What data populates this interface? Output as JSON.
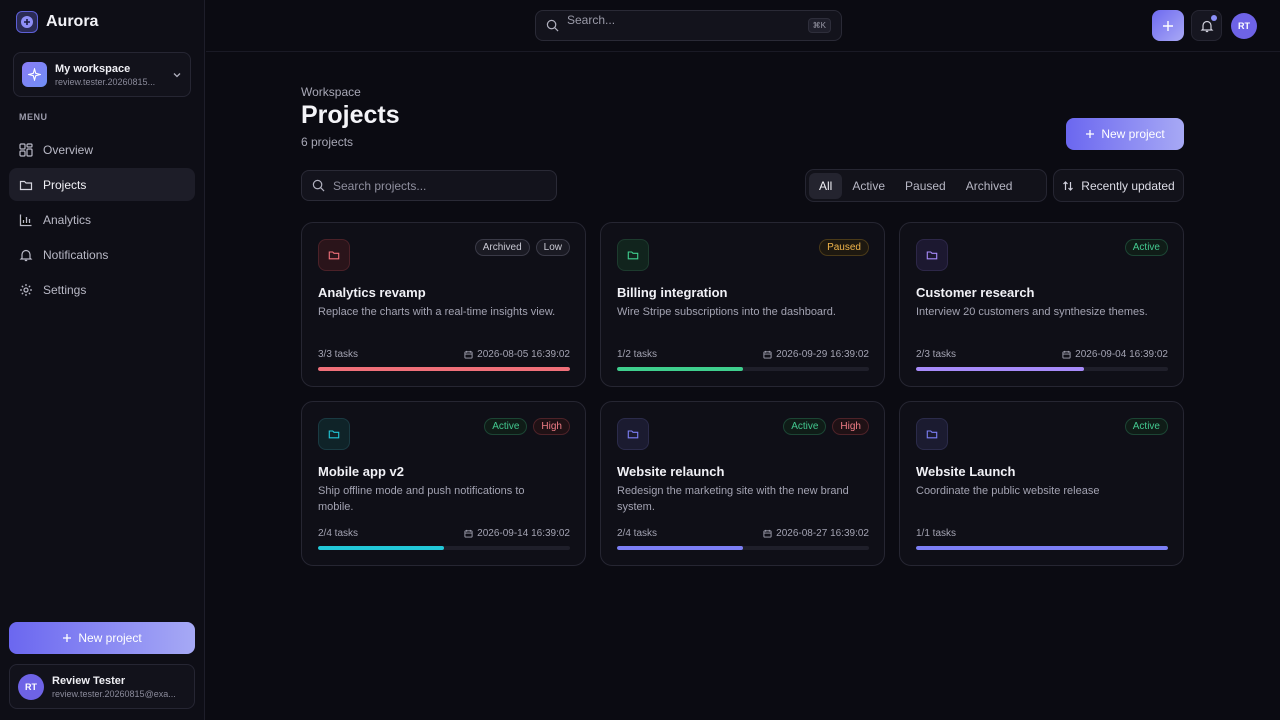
{
  "brand": {
    "name": "Aurora"
  },
  "workspace": {
    "name": "My workspace",
    "sub": "review.tester.20260815..."
  },
  "menu_label": "MENU",
  "nav": [
    {
      "label": "Overview",
      "icon": "grid-icon"
    },
    {
      "label": "Projects",
      "icon": "folder-icon",
      "active": true
    },
    {
      "label": "Analytics",
      "icon": "bar-chart-icon"
    },
    {
      "label": "Notifications",
      "icon": "bell-icon"
    },
    {
      "label": "Settings",
      "icon": "gear-icon"
    }
  ],
  "sidebar_new_project": "New project",
  "user": {
    "initials": "RT",
    "name": "Review Tester",
    "email": "review.tester.20260815@exa..."
  },
  "topbar": {
    "search_placeholder": "Search...",
    "shortcut": "⌘K",
    "avatar_initials": "RT"
  },
  "page": {
    "breadcrumb": "Workspace",
    "title": "Projects",
    "count": "6 projects",
    "new_project": "New project"
  },
  "search": {
    "placeholder": "Search projects..."
  },
  "filters": [
    "All",
    "Active",
    "Paused",
    "Archived"
  ],
  "sort": {
    "label": "Recently updated"
  },
  "colors": {
    "accent": "#6b67f0",
    "red": "#f0707a",
    "green": "#3fcf8e",
    "purple": "#a78bfa",
    "cyan": "#22c8d8",
    "indigo": "#7c7ff5"
  },
  "projects": [
    {
      "title": "Analytics revamp",
      "desc": "Replace the charts with a real-time insights view.",
      "tasks": "3/3 tasks",
      "date": "2026-08-05 16:39:02",
      "progress": 1.0,
      "color": "#f0707a",
      "icon_bg": "#2a141a",
      "icon_border": "#4b2128",
      "badges": [
        {
          "label": "Archived",
          "kind": "archived"
        },
        {
          "label": "Low",
          "kind": "low"
        }
      ]
    },
    {
      "title": "Billing integration",
      "desc": "Wire Stripe subscriptions into the dashboard.",
      "tasks": "1/2 tasks",
      "date": "2026-09-29 16:39:02",
      "progress": 0.5,
      "color": "#3fcf8e",
      "icon_bg": "#11241d",
      "icon_border": "#1d3b2e",
      "badges": [
        {
          "label": "Paused",
          "kind": "paused"
        }
      ]
    },
    {
      "title": "Customer research",
      "desc": "Interview 20 customers and synthesize themes.",
      "tasks": "2/3 tasks",
      "date": "2026-09-04 16:39:02",
      "progress": 0.667,
      "color": "#a78bfa",
      "icon_bg": "#1c1830",
      "icon_border": "#2d2748",
      "badges": [
        {
          "label": "Active",
          "kind": "active"
        }
      ]
    },
    {
      "title": "Mobile app v2",
      "desc": "Ship offline mode and push notifications to mobile.",
      "tasks": "2/4 tasks",
      "date": "2026-09-14 16:39:02",
      "progress": 0.5,
      "color": "#22c8d8",
      "icon_bg": "#0f2328",
      "icon_border": "#1a3a42",
      "badges": [
        {
          "label": "Active",
          "kind": "active"
        },
        {
          "label": "High",
          "kind": "high"
        }
      ]
    },
    {
      "title": "Website relaunch",
      "desc": "Redesign the marketing site with the new brand system.",
      "tasks": "2/4 tasks",
      "date": "2026-08-27 16:39:02",
      "progress": 0.5,
      "color": "#7c7ff5",
      "icon_bg": "#1b1b30",
      "icon_border": "#2b2b4a",
      "badges": [
        {
          "label": "Active",
          "kind": "active"
        },
        {
          "label": "High",
          "kind": "high"
        }
      ]
    },
    {
      "title": "Website Launch",
      "desc": "Coordinate the public website release",
      "tasks": "1/1 tasks",
      "date": "",
      "progress": 1.0,
      "color": "#7c7ff5",
      "icon_bg": "#1b1b30",
      "icon_border": "#2b2b4a",
      "badges": [
        {
          "label": "Active",
          "kind": "active"
        }
      ]
    }
  ]
}
